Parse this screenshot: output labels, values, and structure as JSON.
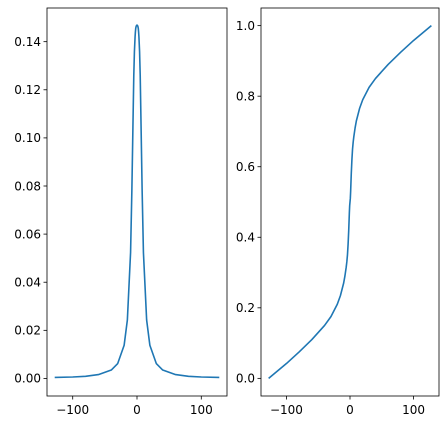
{
  "colors": {
    "series": "#1f77b4",
    "axes": "#000000",
    "background": "#ffffff"
  },
  "chart_data": [
    {
      "type": "line",
      "title": "",
      "xlabel": "",
      "ylabel": "",
      "xlim": [
        -140,
        140
      ],
      "ylim": [
        -0.0073,
        0.154
      ],
      "grid": false,
      "legend": "none",
      "x_ticks": [
        -100,
        0,
        100
      ],
      "x_tick_labels": [
        "−100",
        "0",
        "100"
      ],
      "y_ticks": [
        0.0,
        0.02,
        0.04,
        0.06,
        0.08,
        0.1,
        0.12,
        0.14
      ],
      "y_tick_labels": [
        "0.00",
        "0.02",
        "0.04",
        "0.06",
        "0.08",
        "0.10",
        "0.12",
        "0.14"
      ],
      "series": [
        {
          "x": [
            -128,
            -100,
            -80,
            -60,
            -40,
            -30,
            -20,
            -15,
            -10,
            -8,
            -6,
            -5,
            -4,
            -3,
            -2.5,
            -2,
            -1.5,
            -1,
            -0.5,
            0,
            0.5,
            1,
            1.5,
            2,
            2.5,
            3,
            4,
            5,
            6,
            8,
            10,
            15,
            20,
            30,
            40,
            60,
            80,
            100,
            128
          ],
          "y": [
            0.0004,
            0.0006,
            0.0009,
            0.0016,
            0.0035,
            0.0062,
            0.0138,
            0.0243,
            0.0523,
            0.078,
            0.11,
            0.126,
            0.136,
            0.142,
            0.144,
            0.1455,
            0.1462,
            0.1466,
            0.1468,
            0.1469,
            0.1468,
            0.1466,
            0.1462,
            0.1455,
            0.144,
            0.142,
            0.136,
            0.126,
            0.11,
            0.078,
            0.0523,
            0.0243,
            0.0138,
            0.0062,
            0.0035,
            0.0016,
            0.0009,
            0.0006,
            0.0004
          ]
        }
      ]
    },
    {
      "type": "line",
      "title": "",
      "xlabel": "",
      "ylabel": "",
      "xlim": [
        -140,
        140
      ],
      "ylim": [
        -0.05,
        1.05
      ],
      "grid": false,
      "legend": "none",
      "x_ticks": [
        -100,
        0,
        100
      ],
      "x_tick_labels": [
        "−100",
        "0",
        "100"
      ],
      "y_ticks": [
        0.0,
        0.2,
        0.4,
        0.6,
        0.8,
        1.0
      ],
      "y_tick_labels": [
        "0.0",
        "0.2",
        "0.4",
        "0.6",
        "0.8",
        "1.0"
      ],
      "series": [
        {
          "x": [
            -128,
            -100,
            -80,
            -60,
            -40,
            -30,
            -20,
            -15,
            -10,
            -8,
            -6,
            -5,
            -4,
            -3,
            -2,
            -1,
            -0.5,
            0,
            0.5,
            1,
            2,
            3,
            4,
            5,
            6,
            8,
            10,
            15,
            20,
            30,
            40,
            60,
            80,
            100,
            128
          ],
          "y": [
            0.0,
            0.042,
            0.075,
            0.11,
            0.15,
            0.175,
            0.21,
            0.235,
            0.27,
            0.29,
            0.315,
            0.33,
            0.35,
            0.38,
            0.42,
            0.47,
            0.49,
            0.5,
            0.51,
            0.53,
            0.58,
            0.62,
            0.65,
            0.67,
            0.685,
            0.71,
            0.73,
            0.765,
            0.79,
            0.825,
            0.85,
            0.89,
            0.925,
            0.958,
            1.0
          ]
        }
      ]
    }
  ]
}
